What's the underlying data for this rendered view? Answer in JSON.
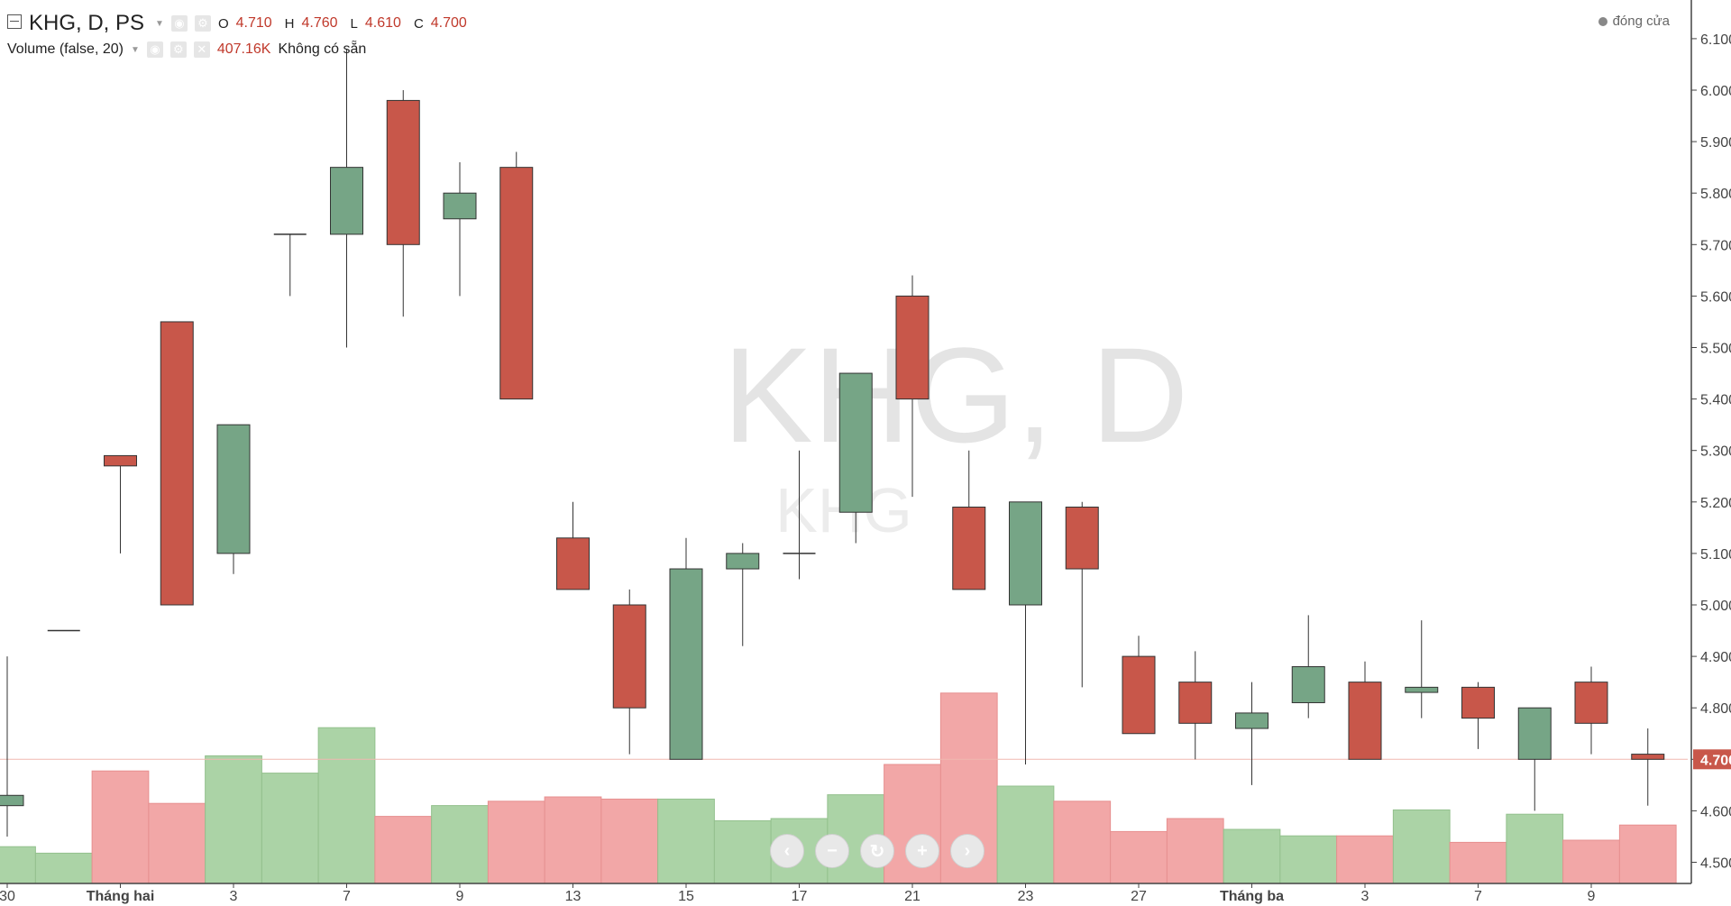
{
  "legend": {
    "title": "KHG, D, PS",
    "o_label": "O",
    "o": "4.710",
    "h_label": "H",
    "h": "4.760",
    "l_label": "L",
    "l": "4.610",
    "c_label": "C",
    "c": "4.700"
  },
  "volume_legend": {
    "title": "Volume (false, 20)",
    "value": "407.16K",
    "extra": "Không có sẵn"
  },
  "status": "đóng cửa",
  "watermark": {
    "main": "KHG, D",
    "sub": "KHG"
  },
  "colors": {
    "up": "#76a586",
    "down": "#c8574a",
    "up_vol": "#abd3a6",
    "down_vol": "#f2a7a7",
    "price_line": "#c8574a"
  },
  "chart_data": {
    "type": "candlestick",
    "price_axis": {
      "ticks": [
        "6.100",
        "6.000",
        "5.900",
        "5.800",
        "5.700",
        "5.600",
        "5.500",
        "5.400",
        "5.300",
        "5.200",
        "5.100",
        "5.000",
        "4.900",
        "4.800",
        "4.700",
        "4.600",
        "4.500"
      ],
      "last_price": "4.700"
    },
    "candles": [
      {
        "o": 4.61,
        "h": 4.9,
        "l": 4.55,
        "c": 4.63
      },
      {
        "o": 4.95,
        "h": 4.95,
        "l": 4.95,
        "c": 4.95
      },
      {
        "o": 5.29,
        "h": 5.29,
        "l": 5.1,
        "c": 5.27
      },
      {
        "o": 5.55,
        "h": 5.55,
        "l": 5.0,
        "c": 5.0
      },
      {
        "o": 5.1,
        "h": 5.35,
        "l": 5.06,
        "c": 5.35
      },
      {
        "o": 5.72,
        "h": 5.72,
        "l": 5.6,
        "c": 5.72
      },
      {
        "o": 5.72,
        "h": 6.08,
        "l": 5.5,
        "c": 5.85
      },
      {
        "o": 5.98,
        "h": 6.0,
        "l": 5.56,
        "c": 5.7
      },
      {
        "o": 5.75,
        "h": 5.86,
        "l": 5.6,
        "c": 5.8
      },
      {
        "o": 5.85,
        "h": 5.88,
        "l": 5.4,
        "c": 5.4
      },
      {
        "o": 5.13,
        "h": 5.2,
        "l": 5.03,
        "c": 5.03
      },
      {
        "o": 5.0,
        "h": 5.03,
        "l": 4.71,
        "c": 4.8
      },
      {
        "o": 4.7,
        "h": 5.13,
        "l": 4.7,
        "c": 5.07
      },
      {
        "o": 5.07,
        "h": 5.12,
        "l": 4.92,
        "c": 5.1
      },
      {
        "o": 5.1,
        "h": 5.3,
        "l": 5.05,
        "c": 5.1
      },
      {
        "o": 5.18,
        "h": 5.45,
        "l": 5.12,
        "c": 5.45
      },
      {
        "o": 5.6,
        "h": 5.64,
        "l": 5.21,
        "c": 5.4
      },
      {
        "o": 5.19,
        "h": 5.3,
        "l": 5.03,
        "c": 5.03
      },
      {
        "o": 5.0,
        "h": 5.2,
        "l": 4.69,
        "c": 5.2
      },
      {
        "o": 5.19,
        "h": 5.2,
        "l": 4.84,
        "c": 5.07
      },
      {
        "o": 4.9,
        "h": 4.94,
        "l": 4.75,
        "c": 4.75
      },
      {
        "o": 4.85,
        "h": 4.91,
        "l": 4.7,
        "c": 4.77
      },
      {
        "o": 4.76,
        "h": 4.85,
        "l": 4.65,
        "c": 4.79
      },
      {
        "o": 4.81,
        "h": 4.98,
        "l": 4.78,
        "c": 4.88
      },
      {
        "o": 4.85,
        "h": 4.89,
        "l": 4.7,
        "c": 4.7
      },
      {
        "o": 4.83,
        "h": 4.97,
        "l": 4.78,
        "c": 4.84
      },
      {
        "o": 4.84,
        "h": 4.85,
        "l": 4.72,
        "c": 4.78
      },
      {
        "o": 4.7,
        "h": 4.8,
        "l": 4.6,
        "c": 4.8
      },
      {
        "o": 4.85,
        "h": 4.88,
        "l": 4.71,
        "c": 4.77
      },
      {
        "o": 4.71,
        "h": 4.76,
        "l": 4.61,
        "c": 4.7
      }
    ],
    "volume_levels": [
      0.17,
      0.14,
      0.52,
      0.37,
      0.59,
      0.51,
      0.72,
      0.31,
      0.36,
      0.38,
      0.4,
      0.39,
      0.39,
      0.29,
      0.3,
      0.41,
      0.55,
      0.88,
      0.45,
      0.38,
      0.24,
      0.3,
      0.25,
      0.22,
      0.22,
      0.34,
      0.19,
      0.32,
      0.2,
      0.27
    ],
    "x_labels": [
      {
        "i": 0,
        "t": "30",
        "b": false
      },
      {
        "i": 2,
        "t": "Tháng hai",
        "b": true
      },
      {
        "i": 4,
        "t": "3",
        "b": false
      },
      {
        "i": 6,
        "t": "7",
        "b": false
      },
      {
        "i": 8,
        "t": "9",
        "b": false
      },
      {
        "i": 10,
        "t": "13",
        "b": false
      },
      {
        "i": 12,
        "t": "15",
        "b": false
      },
      {
        "i": 14,
        "t": "17",
        "b": false
      },
      {
        "i": 16,
        "t": "21",
        "b": false
      },
      {
        "i": 18,
        "t": "23",
        "b": false
      },
      {
        "i": 20,
        "t": "27",
        "b": false
      },
      {
        "i": 22,
        "t": "Tháng ba",
        "b": true
      },
      {
        "i": 24,
        "t": "3",
        "b": false
      },
      {
        "i": 26,
        "t": "7",
        "b": false
      },
      {
        "i": 28,
        "t": "9",
        "b": false
      }
    ]
  }
}
